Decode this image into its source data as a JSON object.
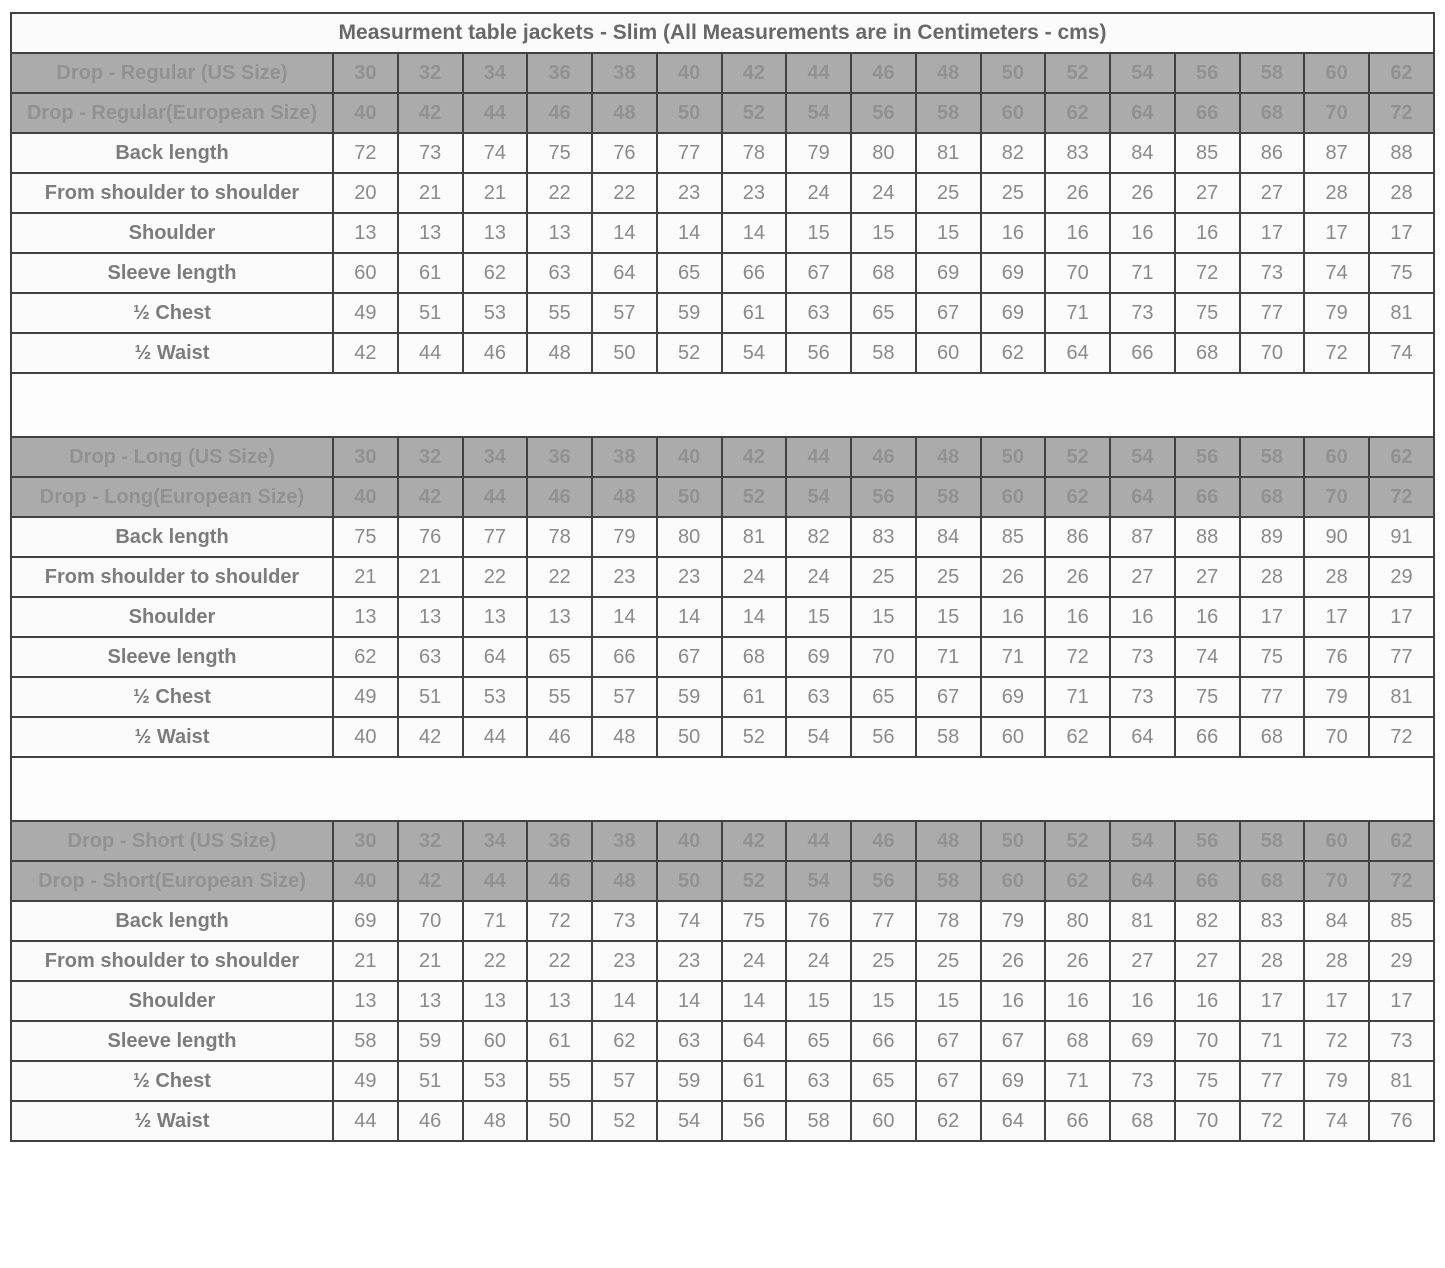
{
  "title": "Measurment table jackets - Slim (All Measurements are in Centimeters - cms)",
  "colors": {
    "header_bg": "#ababab",
    "header_text": "#919191",
    "cell_bg": "#fbfbfb",
    "cell_text": "#8a8a8a",
    "border": "#414141"
  },
  "sections": [
    {
      "name": "regular",
      "rows": [
        {
          "label": "Drop - Regular (US Size)",
          "header": true,
          "values": [
            30,
            32,
            34,
            36,
            38,
            40,
            42,
            44,
            46,
            48,
            50,
            52,
            54,
            56,
            58,
            60,
            62
          ]
        },
        {
          "label": "Drop - Regular(European Size)",
          "header": true,
          "values": [
            40,
            42,
            44,
            46,
            48,
            50,
            52,
            54,
            56,
            58,
            60,
            62,
            64,
            66,
            68,
            70,
            72
          ]
        },
        {
          "label": "Back length",
          "header": false,
          "values": [
            72,
            73,
            74,
            75,
            76,
            77,
            78,
            79,
            80,
            81,
            82,
            83,
            84,
            85,
            86,
            87,
            88
          ]
        },
        {
          "label": "From shoulder to shoulder",
          "header": false,
          "values": [
            20,
            21,
            21,
            22,
            22,
            23,
            23,
            24,
            24,
            25,
            25,
            26,
            26,
            27,
            27,
            28,
            28
          ]
        },
        {
          "label": "Shoulder",
          "header": false,
          "values": [
            13,
            13,
            13,
            13,
            14,
            14,
            14,
            15,
            15,
            15,
            16,
            16,
            16,
            16,
            17,
            17,
            17
          ]
        },
        {
          "label": "Sleeve length",
          "header": false,
          "values": [
            60,
            61,
            62,
            63,
            64,
            65,
            66,
            67,
            68,
            69,
            69,
            70,
            71,
            72,
            73,
            74,
            75
          ]
        },
        {
          "label": "½ Chest",
          "header": false,
          "values": [
            49,
            51,
            53,
            55,
            57,
            59,
            61,
            63,
            65,
            67,
            69,
            71,
            73,
            75,
            77,
            79,
            81
          ]
        },
        {
          "label": "½ Waist",
          "header": false,
          "values": [
            42,
            44,
            46,
            48,
            50,
            52,
            54,
            56,
            58,
            60,
            62,
            64,
            66,
            68,
            70,
            72,
            74
          ]
        }
      ]
    },
    {
      "name": "long",
      "rows": [
        {
          "label": "Drop - Long (US Size)",
          "header": true,
          "values": [
            30,
            32,
            34,
            36,
            38,
            40,
            42,
            44,
            46,
            48,
            50,
            52,
            54,
            56,
            58,
            60,
            62
          ]
        },
        {
          "label": "Drop - Long(European Size)",
          "header": true,
          "values": [
            40,
            42,
            44,
            46,
            48,
            50,
            52,
            54,
            56,
            58,
            60,
            62,
            64,
            66,
            68,
            70,
            72
          ]
        },
        {
          "label": "Back length",
          "header": false,
          "values": [
            75,
            76,
            77,
            78,
            79,
            80,
            81,
            82,
            83,
            84,
            85,
            86,
            87,
            88,
            89,
            90,
            91
          ]
        },
        {
          "label": "From shoulder to shoulder",
          "header": false,
          "values": [
            21,
            21,
            22,
            22,
            23,
            23,
            24,
            24,
            25,
            25,
            26,
            26,
            27,
            27,
            28,
            28,
            29
          ]
        },
        {
          "label": "Shoulder",
          "header": false,
          "values": [
            13,
            13,
            13,
            13,
            14,
            14,
            14,
            15,
            15,
            15,
            16,
            16,
            16,
            16,
            17,
            17,
            17
          ]
        },
        {
          "label": "Sleeve length",
          "header": false,
          "values": [
            62,
            63,
            64,
            65,
            66,
            67,
            68,
            69,
            70,
            71,
            71,
            72,
            73,
            74,
            75,
            76,
            77
          ]
        },
        {
          "label": "½ Chest",
          "header": false,
          "values": [
            49,
            51,
            53,
            55,
            57,
            59,
            61,
            63,
            65,
            67,
            69,
            71,
            73,
            75,
            77,
            79,
            81
          ]
        },
        {
          "label": "½ Waist",
          "header": false,
          "values": [
            40,
            42,
            44,
            46,
            48,
            50,
            52,
            54,
            56,
            58,
            60,
            62,
            64,
            66,
            68,
            70,
            72
          ]
        }
      ]
    },
    {
      "name": "short",
      "rows": [
        {
          "label": "Drop - Short (US Size)",
          "header": true,
          "values": [
            30,
            32,
            34,
            36,
            38,
            40,
            42,
            44,
            46,
            48,
            50,
            52,
            54,
            56,
            58,
            60,
            62
          ]
        },
        {
          "label": "Drop - Short(European Size)",
          "header": true,
          "values": [
            40,
            42,
            44,
            46,
            48,
            50,
            52,
            54,
            56,
            58,
            60,
            62,
            64,
            66,
            68,
            70,
            72
          ]
        },
        {
          "label": "Back length",
          "header": false,
          "values": [
            69,
            70,
            71,
            72,
            73,
            74,
            75,
            76,
            77,
            78,
            79,
            80,
            81,
            82,
            83,
            84,
            85
          ]
        },
        {
          "label": "From shoulder to shoulder",
          "header": false,
          "values": [
            21,
            21,
            22,
            22,
            23,
            23,
            24,
            24,
            25,
            25,
            26,
            26,
            27,
            27,
            28,
            28,
            29
          ]
        },
        {
          "label": "Shoulder",
          "header": false,
          "values": [
            13,
            13,
            13,
            13,
            14,
            14,
            14,
            15,
            15,
            15,
            16,
            16,
            16,
            16,
            17,
            17,
            17
          ]
        },
        {
          "label": "Sleeve length",
          "header": false,
          "values": [
            58,
            59,
            60,
            61,
            62,
            63,
            64,
            65,
            66,
            67,
            67,
            68,
            69,
            70,
            71,
            72,
            73
          ]
        },
        {
          "label": "½ Chest",
          "header": false,
          "values": [
            49,
            51,
            53,
            55,
            57,
            59,
            61,
            63,
            65,
            67,
            69,
            71,
            73,
            75,
            77,
            79,
            81
          ]
        },
        {
          "label": "½ Waist",
          "header": false,
          "values": [
            44,
            46,
            48,
            50,
            52,
            54,
            56,
            58,
            60,
            62,
            64,
            66,
            68,
            70,
            72,
            74,
            76
          ]
        }
      ]
    }
  ]
}
